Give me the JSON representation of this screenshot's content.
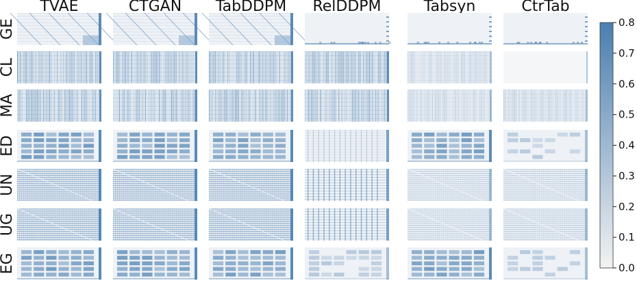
{
  "chart_data": {
    "type": "heatmap",
    "columns": [
      "TVAE",
      "CTGAN",
      "TabDDPM",
      "RelDDPM",
      "Tabsyn",
      "CtrTab"
    ],
    "rows": [
      "GE",
      "CL",
      "MA",
      "ED",
      "UN",
      "UG",
      "EG"
    ],
    "colorbar": {
      "ticks": [
        "0.0",
        "0.1",
        "0.2",
        "0.3",
        "0.4",
        "0.5",
        "0.6",
        "0.7",
        "0.8"
      ],
      "range": [
        0.0,
        0.8
      ],
      "color_low": "#f2f2f2",
      "color_high": "#4a7fb0"
    },
    "panel_patterns": {
      "GE": [
        "diagonal",
        "diagonal",
        "diagonal",
        "sparse",
        "sparse",
        "sparse"
      ],
      "CL": [
        "columns",
        "columns",
        "columns",
        "columns",
        "columns-faint",
        "empty"
      ],
      "MA": [
        "columns",
        "columns",
        "columns",
        "columns",
        "columns-faint",
        "columns-faint"
      ],
      "ED": [
        "blocks",
        "blocks",
        "blocks",
        "grid-faint",
        "blocks",
        "blocks-sparse"
      ],
      "UN": [
        "stripes",
        "stripes",
        "stripes",
        "grid",
        "stripes-faint",
        "stripes-faint"
      ],
      "UG": [
        "stripes",
        "stripes",
        "stripes",
        "grid",
        "stripes-faint",
        "stripes-faint"
      ],
      "EG": [
        "blocks",
        "blocks",
        "blocks",
        "blocks-sparse",
        "blocks",
        "blocks-sparse"
      ]
    }
  }
}
